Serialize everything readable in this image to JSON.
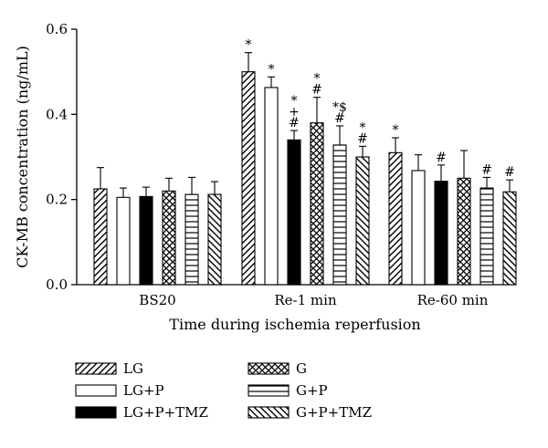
{
  "chart_data": {
    "type": "bar",
    "title": "",
    "xlabel": "Time during ischemia reperfusion",
    "ylabel": "CK-MB concentration (ng/mL)",
    "ylim": [
      0,
      0.6
    ],
    "yticks": [
      "0.0",
      "0.2",
      "0.4",
      "0.6"
    ],
    "categories": [
      "BS20",
      "Re-1 min",
      "Re-60 min"
    ],
    "series": [
      {
        "name": "LG",
        "pattern": "diag-up",
        "values": [
          0.225,
          0.5,
          0.31
        ],
        "errors": [
          0.05,
          0.045,
          0.035
        ],
        "annotations": [
          "",
          "*",
          "*"
        ]
      },
      {
        "name": "LG+P",
        "pattern": "white",
        "values": [
          0.205,
          0.463,
          0.268
        ],
        "errors": [
          0.022,
          0.025,
          0.037
        ],
        "annotations": [
          "",
          "*",
          ""
        ]
      },
      {
        "name": "LG+P+TMZ",
        "pattern": "black",
        "values": [
          0.207,
          0.34,
          0.243
        ],
        "errors": [
          0.022,
          0.022,
          0.038
        ],
        "annotations": [
          "",
          "*\n+\n#",
          "#"
        ]
      },
      {
        "name": "G",
        "pattern": "crosshatch",
        "values": [
          0.22,
          0.38,
          0.25
        ],
        "errors": [
          0.03,
          0.06,
          0.065
        ],
        "annotations": [
          "",
          "*\n#",
          ""
        ]
      },
      {
        "name": "G+P",
        "pattern": "horizontal",
        "values": [
          0.212,
          0.328,
          0.227
        ],
        "errors": [
          0.04,
          0.045,
          0.025
        ],
        "annotations": [
          "",
          "*$\n#",
          "#"
        ]
      },
      {
        "name": "G+P+TMZ",
        "pattern": "diag-down",
        "values": [
          0.212,
          0.3,
          0.218
        ],
        "errors": [
          0.03,
          0.025,
          0.028
        ],
        "annotations": [
          "",
          "*\n#",
          "#"
        ]
      }
    ],
    "grid": false,
    "legend_position": "bottom"
  }
}
